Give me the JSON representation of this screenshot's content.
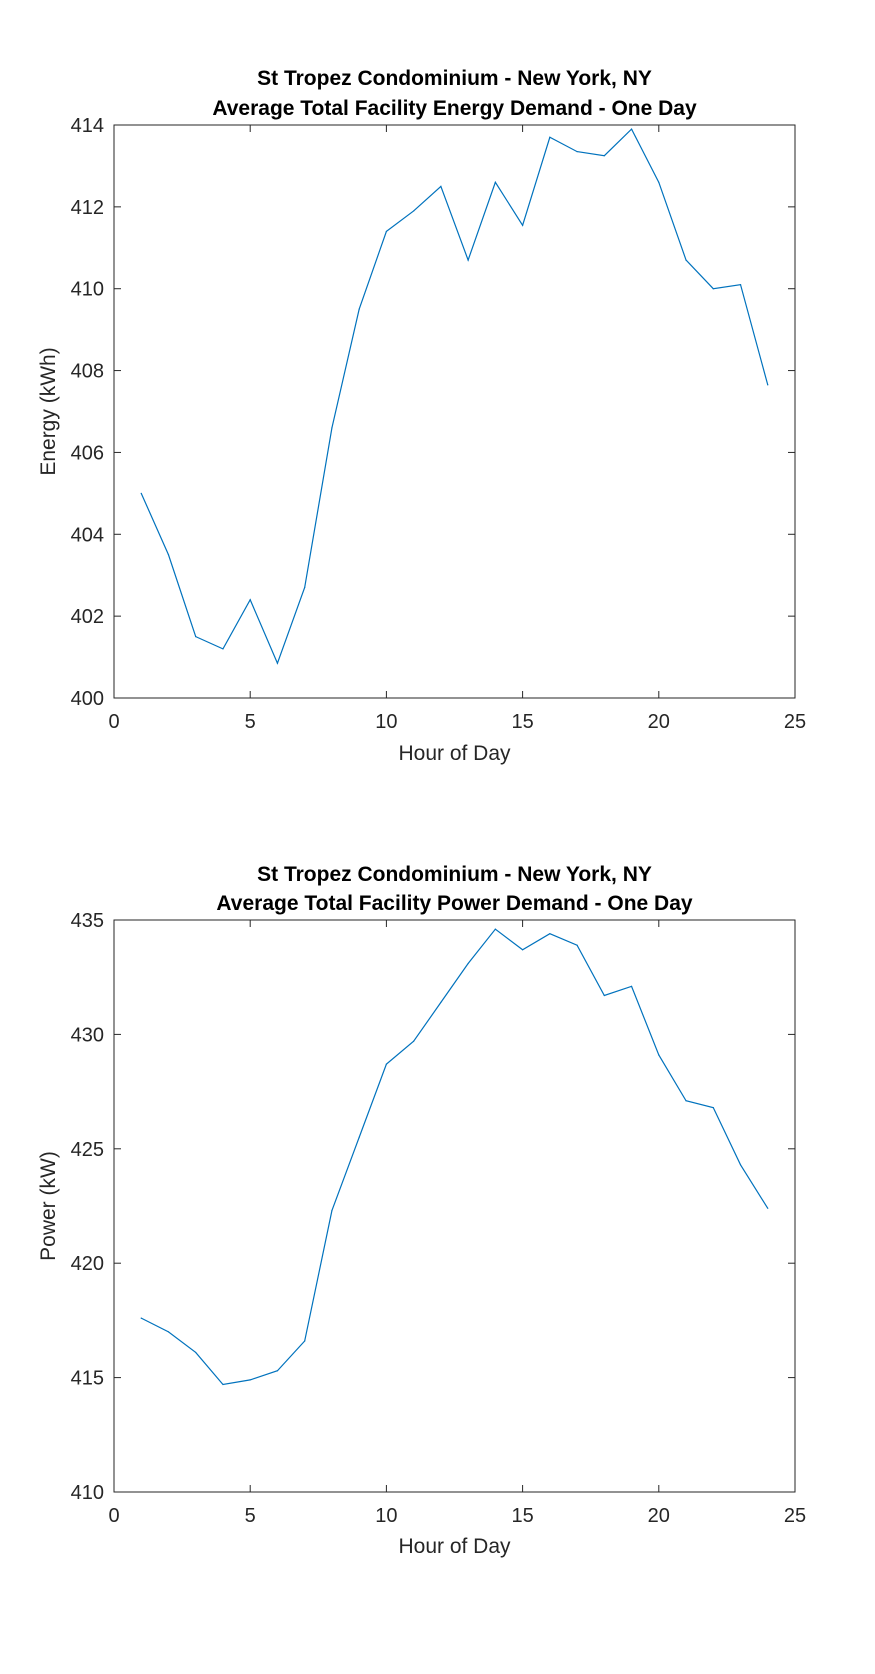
{
  "chart_data": [
    {
      "type": "line",
      "title": "St Tropez Condominium - New York, NY",
      "subtitle": "Average Total Facility Energy Demand - One Day",
      "xlabel": "Hour of Day",
      "ylabel": "Energy (kWh)",
      "xlim": [
        0,
        25
      ],
      "ylim": [
        400,
        414
      ],
      "xticks": [
        0,
        5,
        10,
        15,
        20,
        25
      ],
      "yticks": [
        400,
        402,
        404,
        406,
        408,
        410,
        412,
        414
      ],
      "grid": false,
      "line_color": "#0072BD",
      "series": [
        {
          "x": [
            1,
            2,
            3,
            4,
            5,
            6,
            7,
            8,
            9,
            10,
            11,
            12,
            13,
            14,
            15,
            16,
            17,
            18,
            19,
            20,
            21,
            22,
            23,
            24
          ],
          "values": [
            405.0,
            403.5,
            401.5,
            401.2,
            402.4,
            400.85,
            402.7,
            406.6,
            409.5,
            411.4,
            411.9,
            412.5,
            410.7,
            412.6,
            411.55,
            413.7,
            413.35,
            413.25,
            413.9,
            412.6,
            410.7,
            410.0,
            410.1,
            407.65
          ]
        }
      ]
    },
    {
      "type": "line",
      "title": "St Tropez Condominium - New York, NY",
      "subtitle": "Average Total Facility Power Demand - One Day",
      "xlabel": "Hour of Day",
      "ylabel": "Power (kW)",
      "xlim": [
        0,
        25
      ],
      "ylim": [
        410,
        435
      ],
      "xticks": [
        0,
        5,
        10,
        15,
        20,
        25
      ],
      "yticks": [
        410,
        415,
        420,
        425,
        430,
        435
      ],
      "grid": false,
      "line_color": "#0072BD",
      "series": [
        {
          "x": [
            1,
            2,
            3,
            4,
            5,
            6,
            7,
            8,
            9,
            10,
            11,
            12,
            13,
            14,
            15,
            16,
            17,
            18,
            19,
            20,
            21,
            22,
            23,
            24
          ],
          "values": [
            417.6,
            417.0,
            416.1,
            414.7,
            414.9,
            415.3,
            416.6,
            422.3,
            425.5,
            428.7,
            429.7,
            431.4,
            433.1,
            434.6,
            433.7,
            434.4,
            433.9,
            431.7,
            432.1,
            429.1,
            427.1,
            426.8,
            424.3,
            422.4
          ]
        }
      ]
    }
  ]
}
